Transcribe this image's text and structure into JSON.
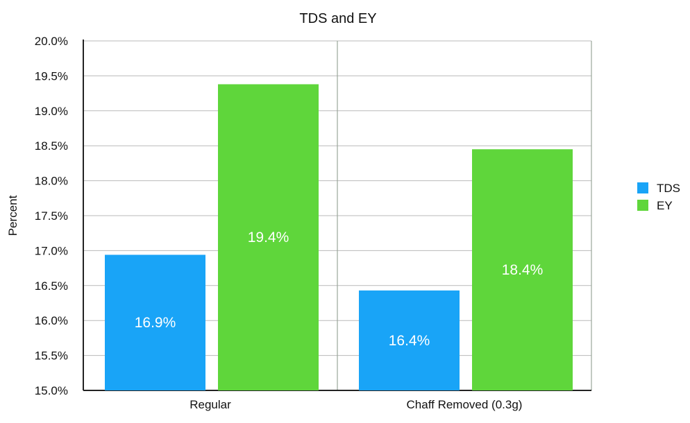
{
  "chart_data": {
    "type": "bar",
    "title": "TDS and EY",
    "xlabel": "",
    "ylabel": "Percent",
    "ylim": [
      15.0,
      20.0
    ],
    "yticks": [
      "15.0%",
      "15.5%",
      "16.0%",
      "16.5%",
      "17.0%",
      "17.5%",
      "18.0%",
      "18.5%",
      "19.0%",
      "19.5%",
      "20.0%"
    ],
    "categories": [
      "Regular",
      "Chaff Removed (0.3g)"
    ],
    "series": [
      {
        "name": "TDS",
        "color": "#19a4f7",
        "values": [
          16.94,
          16.43
        ],
        "labels": [
          "16.9%",
          "16.4%"
        ]
      },
      {
        "name": "EY",
        "color": "#5fd63b",
        "values": [
          19.38,
          18.45
        ],
        "labels": [
          "19.4%",
          "18.4%"
        ]
      }
    ],
    "grid": true,
    "legend": "right"
  }
}
